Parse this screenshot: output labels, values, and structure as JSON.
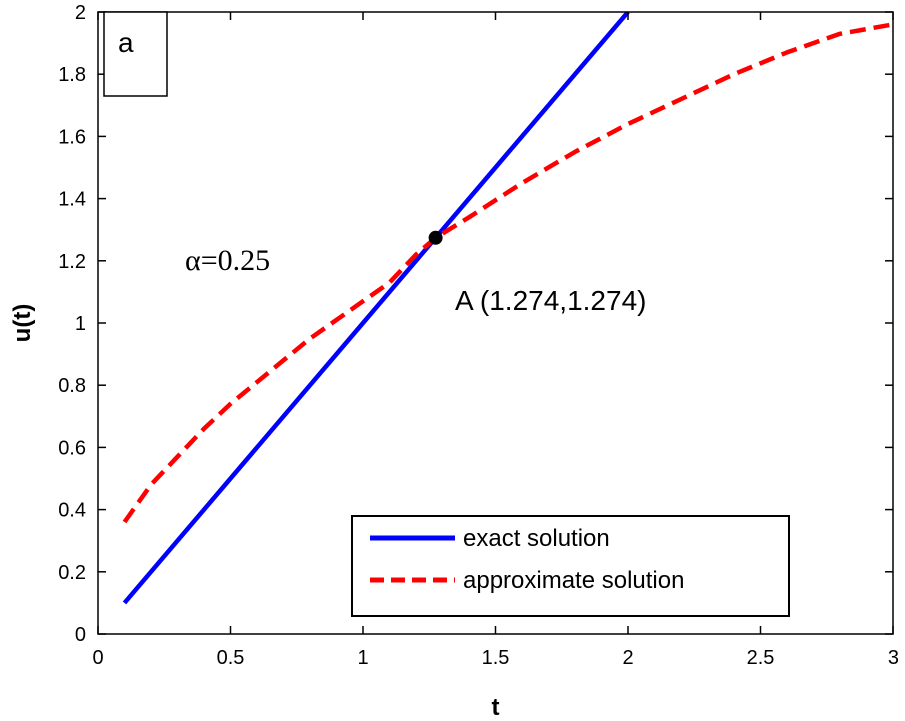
{
  "chart_data": {
    "type": "line",
    "panel_label": "a",
    "xlabel": "t",
    "ylabel": "u(t)",
    "xlim": [
      0,
      3
    ],
    "ylim": [
      0,
      2
    ],
    "xticks": [
      0,
      0.5,
      1,
      1.5,
      2,
      2.5,
      3
    ],
    "xtick_labels": [
      "0",
      "0.5",
      "1",
      "1.5",
      "2",
      "2.5",
      "3"
    ],
    "yticks": [
      0,
      0.2,
      0.4,
      0.6,
      0.8,
      1.0,
      1.2,
      1.4,
      1.6,
      1.8,
      2.0
    ],
    "ytick_labels": [
      "0",
      "0.2",
      "0.4",
      "0.6",
      "0.8",
      "1",
      "1.2",
      "1.4",
      "1.6",
      "1.8",
      "2"
    ],
    "grid": false,
    "legend_position": "bottom-right",
    "series": [
      {
        "name": "exact solution",
        "color": "#0000ff",
        "style": "solid",
        "x": [
          0.1,
          0.5,
          1.0,
          1.5,
          2.0
        ],
        "y": [
          0.1,
          0.5,
          1.0,
          1.5,
          2.0
        ]
      },
      {
        "name": "approximate solution",
        "color": "#ff0000",
        "style": "dashed",
        "x": [
          0.1,
          0.2,
          0.3,
          0.4,
          0.5,
          0.6,
          0.7,
          0.8,
          0.9,
          1.0,
          1.1,
          1.2,
          1.274,
          1.4,
          1.6,
          1.8,
          2.0,
          2.2,
          2.4,
          2.6,
          2.8,
          3.0
        ],
        "y": [
          0.36,
          0.48,
          0.57,
          0.66,
          0.74,
          0.81,
          0.88,
          0.95,
          1.01,
          1.07,
          1.13,
          1.22,
          1.274,
          1.34,
          1.45,
          1.55,
          1.64,
          1.72,
          1.8,
          1.87,
          1.93,
          1.96
        ]
      }
    ],
    "annotations": {
      "alpha_text": "α=0.25",
      "point_label": "A (1.274,1.274)",
      "point": {
        "x": 1.274,
        "y": 1.274,
        "color": "#000000"
      }
    }
  }
}
